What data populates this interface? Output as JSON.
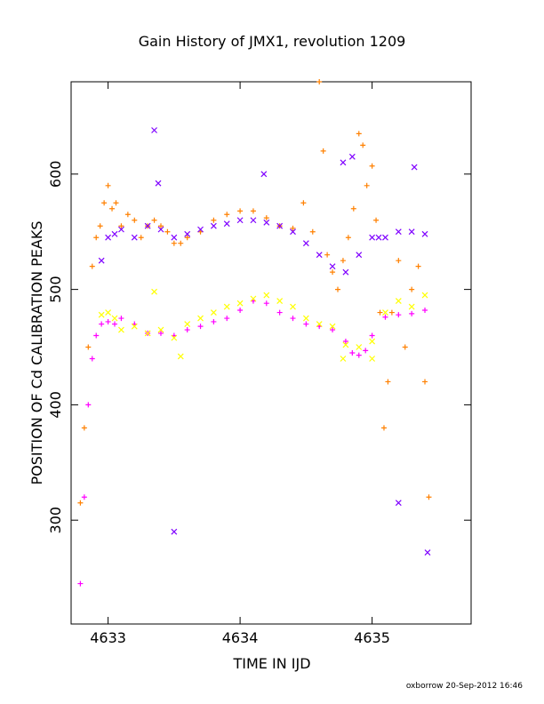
{
  "chart_data": {
    "type": "scatter",
    "title": "Gain History of JMX1, revolution 1209",
    "xlabel": "TIME IN IJD",
    "ylabel": "POSITION OF Cd CALIBRATION PEAKS",
    "footer": "oxborrow 20-Sep-2012 16:46",
    "xlim": [
      4632.72,
      4635.75
    ],
    "ylim": [
      210,
      680
    ],
    "x_ticks": [
      4633,
      4634,
      4635
    ],
    "x_tick_labels": [
      "4633",
      "4634",
      "4635"
    ],
    "y_ticks": [
      300,
      400,
      500,
      600
    ],
    "y_tick_labels": [
      "300",
      "400",
      "500",
      "600"
    ],
    "grid": false,
    "legend": "none",
    "series": [
      {
        "color": "#ff8000",
        "marker": "plus",
        "x": [
          4632.79,
          4632.82,
          4632.85,
          4632.88,
          4632.91,
          4632.94,
          4632.97,
          4633.0,
          4633.03,
          4633.06,
          4633.1,
          4633.15,
          4633.2,
          4633.25,
          4633.3,
          4633.35,
          4633.4,
          4633.45,
          4633.5,
          4633.55,
          4633.6,
          4633.7,
          4633.8,
          4633.9,
          4634.0,
          4634.1,
          4634.2,
          4634.3,
          4634.4,
          4634.48,
          4634.55,
          4634.6,
          4634.63,
          4634.66,
          4634.7,
          4634.74,
          4634.78,
          4634.82,
          4634.86,
          4634.9,
          4634.93,
          4634.96,
          4635.0,
          4635.03,
          4635.06,
          4635.09,
          4635.12,
          4635.15,
          4635.2,
          4635.25,
          4635.3,
          4635.35,
          4635.4,
          4635.43
        ],
        "y": [
          315,
          380,
          450,
          520,
          545,
          555,
          575,
          590,
          570,
          575,
          555,
          565,
          560,
          545,
          555,
          560,
          555,
          550,
          540,
          540,
          545,
          550,
          560,
          565,
          568,
          568,
          562,
          555,
          553,
          575,
          550,
          680,
          620,
          530,
          515,
          500,
          525,
          545,
          570,
          635,
          625,
          590,
          607,
          560,
          480,
          380,
          420,
          480,
          525,
          450,
          500,
          520,
          420,
          320
        ]
      },
      {
        "color": "#ff00ff",
        "marker": "plus",
        "x": [
          4632.79,
          4632.82,
          4632.85,
          4632.88,
          4632.91,
          4632.95,
          4633.0,
          4633.05,
          4633.1,
          4633.2,
          4633.3,
          4633.4,
          4633.5,
          4633.6,
          4633.7,
          4633.8,
          4633.9,
          4634.0,
          4634.1,
          4634.2,
          4634.3,
          4634.4,
          4634.5,
          4634.6,
          4634.7,
          4634.8,
          4634.85,
          4634.9,
          4634.95,
          4635.0,
          4635.1,
          4635.2,
          4635.3,
          4635.4
        ],
        "y": [
          245,
          320,
          400,
          440,
          460,
          470,
          472,
          470,
          475,
          470,
          462,
          462,
          460,
          465,
          468,
          472,
          475,
          482,
          490,
          488,
          480,
          475,
          470,
          468,
          465,
          455,
          445,
          443,
          447,
          460,
          476,
          478,
          479,
          482
        ]
      },
      {
        "color": "#7f00ff",
        "marker": "x",
        "x": [
          4632.95,
          4633.0,
          4633.05,
          4633.1,
          4633.2,
          4633.3,
          4633.4,
          4633.5,
          4633.6,
          4633.7,
          4633.8,
          4633.9,
          4634.0,
          4634.1,
          4634.2,
          4634.3,
          4634.4,
          4634.5,
          4634.6,
          4634.7,
          4634.8,
          4634.9,
          4635.0,
          4635.1,
          4635.2,
          4635.3,
          4635.4,
          4633.35,
          4633.38,
          4633.5,
          4634.18,
          4634.78,
          4634.85,
          4635.32,
          4635.05,
          4635.2,
          4635.42
        ],
        "y": [
          525,
          545,
          548,
          552,
          545,
          555,
          552,
          545,
          548,
          552,
          555,
          557,
          560,
          560,
          558,
          555,
          550,
          540,
          530,
          520,
          515,
          530,
          545,
          545,
          550,
          550,
          548,
          638,
          592,
          290,
          600,
          610,
          615,
          606,
          545,
          315,
          272
        ]
      },
      {
        "color": "#ffff00",
        "marker": "x",
        "x": [
          4632.95,
          4633.0,
          4633.05,
          4633.1,
          4633.2,
          4633.3,
          4633.4,
          4633.5,
          4633.6,
          4633.7,
          4633.8,
          4633.9,
          4634.0,
          4634.1,
          4634.2,
          4634.3,
          4634.4,
          4634.5,
          4634.6,
          4634.7,
          4634.8,
          4634.9,
          4635.0,
          4635.1,
          4635.2,
          4635.3,
          4635.4,
          4633.35,
          4633.55,
          4634.78,
          4635.0
        ],
        "y": [
          478,
          480,
          475,
          465,
          468,
          462,
          465,
          458,
          470,
          475,
          480,
          485,
          488,
          492,
          495,
          490,
          485,
          475,
          470,
          468,
          452,
          450,
          455,
          480,
          490,
          485,
          495,
          498,
          442,
          440,
          440
        ]
      }
    ]
  }
}
